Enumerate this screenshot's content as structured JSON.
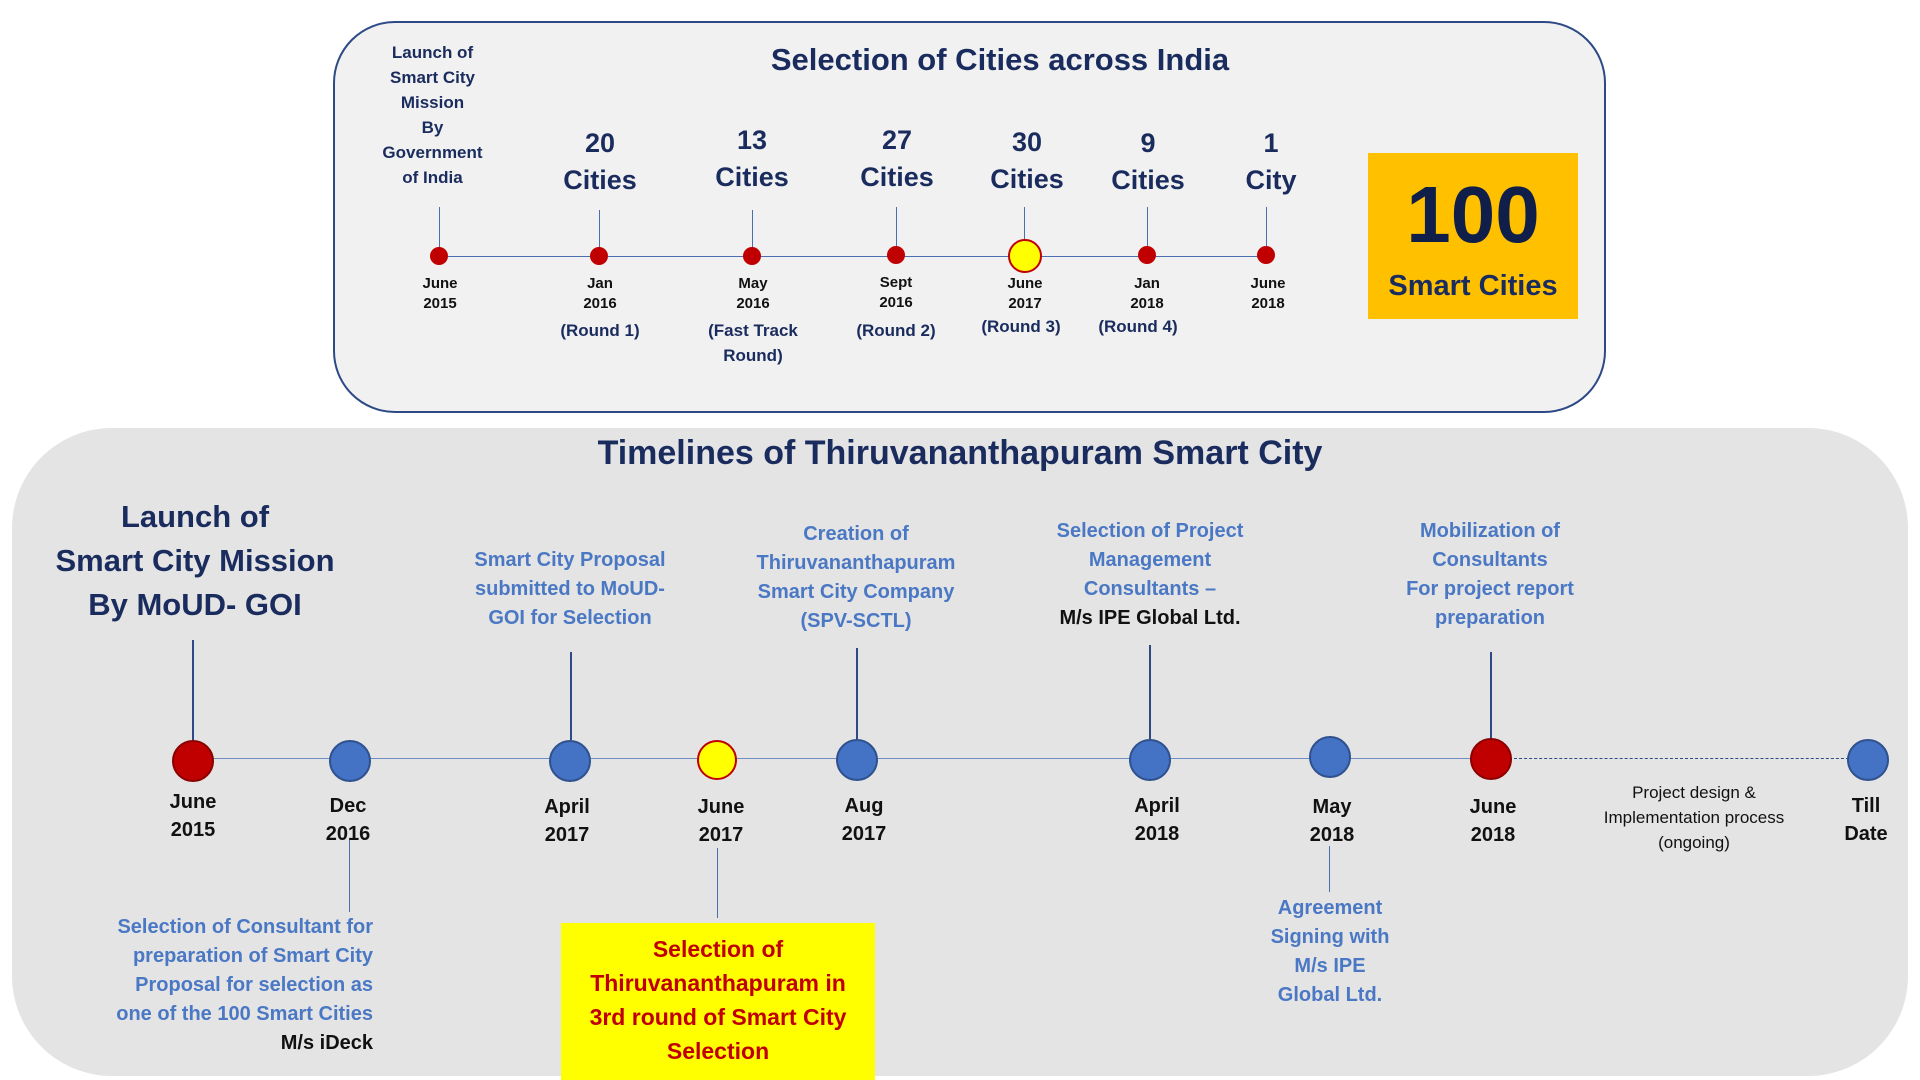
{
  "top": {
    "title": "Selection of Cities across India",
    "launch_text": [
      "Launch of",
      "Smart City",
      "Mission",
      "By",
      "Government",
      "of India"
    ],
    "milestones": [
      {
        "count": "",
        "unit": "",
        "date": [
          "June",
          "2015"
        ],
        "round": []
      },
      {
        "count": "20",
        "unit": "Cities",
        "date": [
          "Jan",
          "2016"
        ],
        "round": [
          "(Round 1)"
        ]
      },
      {
        "count": "13",
        "unit": "Cities",
        "date": [
          "May",
          "2016"
        ],
        "round": [
          "(Fast Track",
          "Round)"
        ]
      },
      {
        "count": "27",
        "unit": "Cities",
        "date": [
          "Sept",
          "2016"
        ],
        "round": [
          "(Round 2)"
        ]
      },
      {
        "count": "30",
        "unit": "Cities",
        "date": [
          "June",
          "2017"
        ],
        "round": [
          "(Round 3)"
        ]
      },
      {
        "count": "9",
        "unit": "Cities",
        "date": [
          "Jan",
          "2018"
        ],
        "round": [
          "(Round 4)"
        ]
      },
      {
        "count": "1",
        "unit": "City",
        "date": [
          "June",
          "2018"
        ],
        "round": []
      }
    ],
    "badge": {
      "number": "100",
      "label": "Smart Cities"
    }
  },
  "bottom": {
    "title": "Timelines of Thiruvananthapuram Smart City",
    "launch_text": [
      "Launch of",
      "Smart City Mission",
      "By MoUD- GOI"
    ],
    "dates": [
      [
        "June",
        "2015"
      ],
      [
        "Dec",
        "2016"
      ],
      [
        "April",
        "2017"
      ],
      [
        "June",
        "2017"
      ],
      [
        "Aug",
        "2017"
      ],
      [
        "April",
        "2018"
      ],
      [
        "May",
        "2018"
      ],
      [
        "June",
        "2018"
      ],
      [
        "Till",
        "Date"
      ]
    ],
    "proposal": [
      "Smart City Proposal",
      "submitted to MoUD-",
      "GOI for Selection"
    ],
    "creation": [
      "Creation of",
      "Thiruvananthapuram",
      "Smart City Company",
      "(SPV-SCTL)"
    ],
    "pmc_selection": [
      "Selection of Project",
      "Management",
      "Consultants –"
    ],
    "pmc_name": "M/s IPE Global Ltd.",
    "mobilization": [
      "Mobilization of",
      "Consultants",
      "For project report",
      "preparation"
    ],
    "consultant": [
      "Selection of Consultant for",
      "preparation of Smart City",
      "Proposal for selection as",
      "one of the 100 Smart Cities"
    ],
    "consultant_name": "M/s iDeck",
    "tvm_selection": [
      "Selection of",
      "Thiruvananthapuram in",
      "3rd round of Smart City",
      "Selection"
    ],
    "agreement": [
      "Agreement",
      "Signing with",
      "M/s IPE",
      "Global Ltd."
    ],
    "ongoing": [
      "Project design &",
      "Implementation process",
      "(ongoing)"
    ]
  },
  "colors": {
    "navy": "#1a2c5e",
    "blue_text": "#4a78c4",
    "red": "#c00000",
    "yellow": "#ffff00",
    "blue_dot": "#4472c4",
    "badge": "#ffc000"
  }
}
